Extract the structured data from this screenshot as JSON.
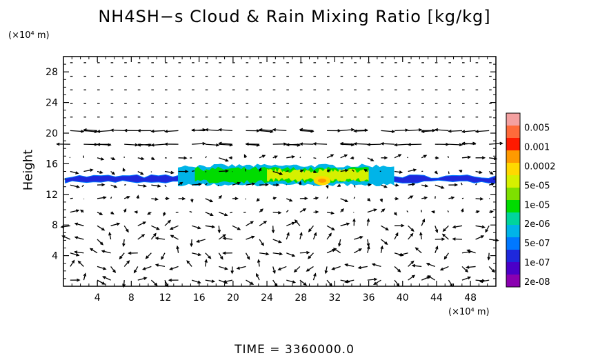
{
  "chart_data": {
    "type": "heatmap",
    "title": "NH4SH−s Cloud & Rain Mixing Ratio [kg/kg]",
    "ylabel": "Height",
    "xlabel": "",
    "x_unit": "(×10⁴ m)",
    "y_unit": "(×10⁴ m)",
    "xlim": [
      0,
      51
    ],
    "ylim": [
      0,
      30
    ],
    "x_ticks": [
      "4",
      "8",
      "12",
      "16",
      "20",
      "24",
      "28",
      "32",
      "36",
      "40",
      "44",
      "48"
    ],
    "x_tick_values": [
      4,
      8,
      12,
      16,
      20,
      24,
      28,
      32,
      36,
      40,
      44,
      48
    ],
    "y_ticks": [
      "4",
      "8",
      "12",
      "16",
      "20",
      "24",
      "28"
    ],
    "y_tick_values": [
      4,
      8,
      12,
      16,
      20,
      24,
      28
    ],
    "grid": false,
    "colorbar": {
      "labels": [
        "0.005",
        "0.001",
        "0.0002",
        "5e-05",
        "1e-05",
        "2e-06",
        "5e-07",
        "1e-07",
        "2e-08"
      ],
      "colors": [
        "#f4a0a0",
        "#ff6a3a",
        "#ff1a00",
        "#ff9a00",
        "#ffd800",
        "#d6f000",
        "#7ee000",
        "#00dc00",
        "#00d49c",
        "#00b4e8",
        "#0078ff",
        "#1e28dc",
        "#4a00c8",
        "#8a00b0"
      ]
    },
    "overlay": "wind vector arrows",
    "cloud_layers": [
      {
        "x_start": 0.2,
        "x_end": 51,
        "y_center": 14.0,
        "thickness": 0.7,
        "level": "1e-07"
      },
      {
        "x_start": 13.5,
        "x_end": 39,
        "y_center": 14.5,
        "thickness": 2.5,
        "level": "5e-05"
      },
      {
        "x_start": 29.5,
        "x_end": 31.5,
        "y_center": 13.8,
        "thickness": 1.2,
        "level": "0.0002"
      }
    ],
    "time_label": "TIME  =  3360000.0"
  }
}
